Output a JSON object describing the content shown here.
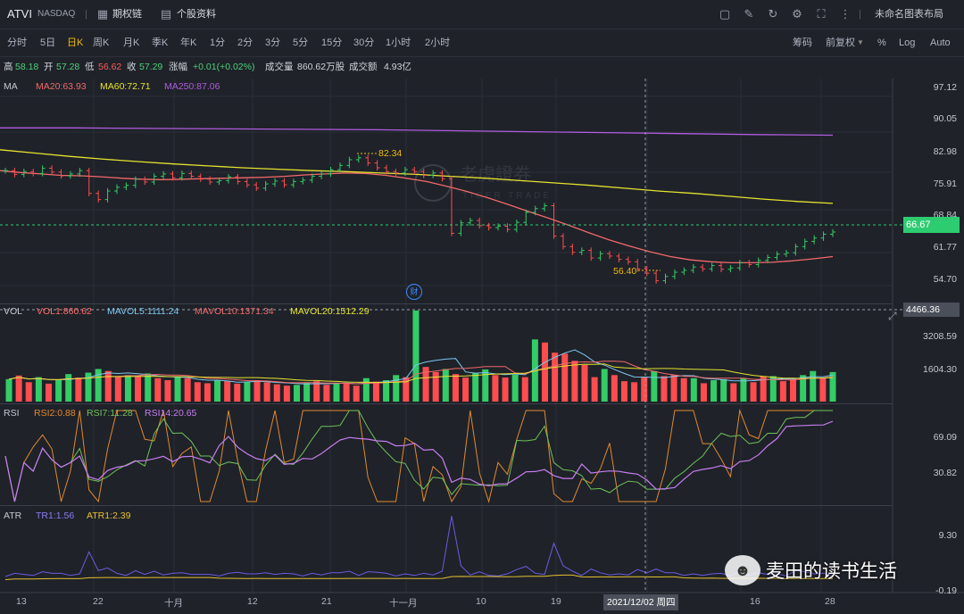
{
  "colors": {
    "up": "#33cc66",
    "down": "#ff4d4f",
    "ma20": "#f2696b",
    "ma60": "#e5e330",
    "ma250": "#b05ce0",
    "accent": "#f0b90b",
    "price_tag": "#2ecc71"
  },
  "topbar": {
    "symbol": "ATVI",
    "exchange": "NASDAQ",
    "sep": "|",
    "options_chain": "期权链",
    "company_info": "个股资料",
    "layout_name": "未命名图表布局",
    "icons": [
      "options-chain-icon",
      "company-info-icon",
      "chart-draw-icon",
      "pencil-icon",
      "refresh-icon",
      "settings-icon",
      "fullscreen-icon",
      "more-icon"
    ]
  },
  "periods": [
    "分时",
    "5日",
    "日K",
    "周K",
    "月K",
    "季K",
    "年K",
    "1分",
    "2分",
    "3分",
    "5分",
    "15分",
    "30分",
    "1小时",
    "2小时"
  ],
  "active_period": "日K",
  "right_tools": [
    "筹码",
    "前复权",
    "%",
    "Log",
    "Auto"
  ],
  "quote": {
    "high_label": "高",
    "high": "58.18",
    "open_label": "开",
    "open": "57.28",
    "low_label": "低",
    "low": "56.62",
    "close_label": "收",
    "close": "57.29",
    "change_label": "涨幅",
    "change": "+0.01(+0.02%)",
    "volume_label": "成交量",
    "volume": "860.62万股",
    "amount_label": "成交额",
    "amount": "4.93亿"
  },
  "ma_legend": {
    "name": "MA",
    "ma20": "MA20:63.93",
    "ma60": "MA60:72.71",
    "ma250": "MA250:87.06"
  },
  "price_axis": [
    "97.12",
    "90.05",
    "82.98",
    "75.91",
    "68.84",
    "61.77",
    "54.70"
  ],
  "current_price": "66.67",
  "high_mark": "82.34",
  "low_mark": "56.40",
  "cross_value": "4466.36",
  "vol_legend": {
    "name": "VOL",
    "vol1": "VOL1:860.62",
    "mavol5": "MAVOL5:1111.24",
    "mavol10": "MAVOL10:1371.34",
    "mavol20": "MAVOL20:1512.29"
  },
  "vol_axis": [
    "3208.59",
    "1604.30"
  ],
  "rsi_legend": {
    "name": "RSI",
    "rsi2": "RSI2:0.88",
    "rsi7": "RSI7:11.28",
    "rsi14": "RSI14:20.65"
  },
  "rsi_axis": [
    "69.09",
    "30.82"
  ],
  "atr_legend": {
    "name": "ATR",
    "tr1": "TR1:1.56",
    "atr1": "ATR1:2.39"
  },
  "atr_axis": [
    "9.30",
    "-0.19"
  ],
  "x_ticks": [
    "13",
    "22",
    "十月",
    "12",
    "21",
    "十一月",
    "10",
    "19",
    "16",
    "28"
  ],
  "cursor_date": "2021/12/02 周四",
  "finance_marker": "财",
  "watermark": {
    "main": "老虎證券",
    "sub": "TIGER TRADE"
  },
  "wechat_label": "麦田的读书生活",
  "chart_data": {
    "type": "line",
    "title": "ATVI NASDAQ 日K",
    "candles_close": [
      79.6,
      78.8,
      79.4,
      79.0,
      80.1,
      79.3,
      78.5,
      78.9,
      79.6,
      74.8,
      73.5,
      75.3,
      76.1,
      76.5,
      77.8,
      77.2,
      78.4,
      78.9,
      78.1,
      79.0,
      78.4,
      77.8,
      77.2,
      77.5,
      78.3,
      77.3,
      76.6,
      75.9,
      76.8,
      77.4,
      76.6,
      77.3,
      77.6,
      78.4,
      78.9,
      79.8,
      80.7,
      81.9,
      82.3,
      81.2,
      80.2,
      79.4,
      79.1,
      79.8,
      79.4,
      78.6,
      79.1,
      77.9,
      66.4,
      68.6,
      69.1,
      68.0,
      67.6,
      67.9,
      67.2,
      68.7,
      70.8,
      71.6,
      72.2,
      65.8,
      63.6,
      62.4,
      62.8,
      61.2,
      62.1,
      61.6,
      60.9,
      60.4,
      58.9,
      58.0,
      56.4,
      57.3,
      58.2,
      58.6,
      59.3,
      58.9,
      59.6,
      58.8,
      59.1,
      60.2,
      59.8,
      60.7,
      61.3,
      62.0,
      62.3,
      63.6,
      64.7,
      65.4,
      66.2,
      66.67
    ],
    "ma_series": [
      {
        "name": "MA20",
        "values": [
          79.6,
          79.2,
          78.9,
          78.6,
          78.5,
          78.3,
          78.0,
          77.8,
          77.7,
          77.8,
          77.9,
          78.0,
          78.1,
          78.2,
          78.4,
          78.7,
          78.9,
          79.1,
          79.0,
          78.6,
          78.0,
          77.3,
          76.3,
          75.2,
          73.9,
          72.5,
          71.0,
          69.6,
          68.1,
          66.5,
          65.0,
          63.7,
          62.5,
          61.5,
          60.8,
          60.4,
          60.2,
          60.2,
          60.3,
          60.6,
          61.0,
          61.5
        ]
      },
      {
        "name": "MA60",
        "values": [
          84.0,
          83.3,
          82.6,
          82.0,
          81.5,
          81.0,
          80.6,
          80.2,
          79.9,
          79.6,
          79.4,
          79.1,
          78.8,
          78.4,
          78.0,
          77.5,
          77.0,
          76.5,
          75.9,
          75.3,
          74.8,
          74.2,
          73.6,
          73.1,
          72.7
        ]
      },
      {
        "name": "MA250",
        "values": [
          88.6,
          88.6,
          88.5,
          88.4,
          88.3,
          88.2,
          88.0,
          87.8,
          87.6,
          87.4,
          87.2,
          87.06
        ]
      }
    ],
    "volume": [
      1100,
      1280,
      950,
      1200,
      880,
      1050,
      1350,
      1180,
      1420,
      1600,
      1500,
      1200,
      1300,
      1250,
      1380,
      1150,
      1050,
      1200,
      1150,
      950,
      900,
      1050,
      1000,
      880,
      980,
      1050,
      940,
      850,
      780,
      820,
      950,
      1000,
      820,
      880,
      900,
      780,
      1150,
      980,
      1050,
      1300,
      1200,
      4466,
      1700,
      1450,
      1600,
      1350,
      1180,
      1400,
      1580,
      1300,
      1180,
      1320,
      1200,
      3050,
      2900,
      2400,
      2350,
      2000,
      1800,
      1200,
      1600,
      1300,
      1000,
      950,
      1180,
      1500,
      1250,
      1300,
      1150,
      1150,
      900,
      1050,
      1100,
      900,
      1150,
      950,
      1250,
      1250,
      1000,
      1080,
      1300,
      1500,
      1180,
      1450
    ]
  }
}
